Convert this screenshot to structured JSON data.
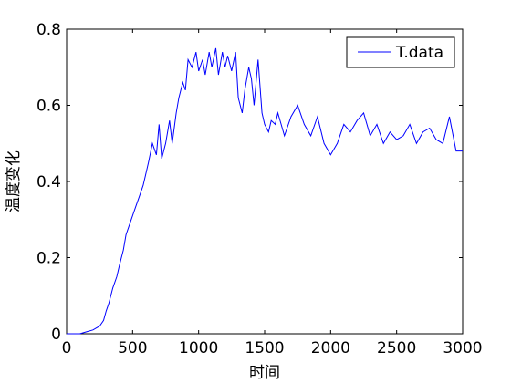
{
  "chart_data": {
    "type": "line",
    "title": "",
    "xlabel": "时间",
    "ylabel": "温度变化",
    "xlim": [
      0,
      3000
    ],
    "ylim": [
      0,
      0.8
    ],
    "xticks": [
      0,
      500,
      1000,
      1500,
      2000,
      2500,
      3000
    ],
    "xtick_labels": [
      "0",
      "500",
      "1000",
      "1500",
      "2000",
      "2500",
      "3000"
    ],
    "yticks": [
      0,
      0.2,
      0.4,
      0.6,
      0.8
    ],
    "ytick_labels": [
      "0",
      "0.2",
      "0.4",
      "0.6",
      "0.8"
    ],
    "grid": false,
    "legend_position": "top-right",
    "series": [
      {
        "name": "T.data",
        "color": "#0000ff",
        "x": [
          0,
          50,
          100,
          150,
          200,
          250,
          280,
          300,
          320,
          350,
          380,
          400,
          430,
          450,
          480,
          500,
          520,
          550,
          580,
          600,
          620,
          650,
          680,
          700,
          720,
          750,
          780,
          800,
          830,
          850,
          880,
          900,
          920,
          950,
          980,
          1000,
          1030,
          1050,
          1080,
          1100,
          1130,
          1150,
          1180,
          1200,
          1220,
          1250,
          1280,
          1300,
          1330,
          1350,
          1380,
          1400,
          1420,
          1450,
          1480,
          1500,
          1530,
          1550,
          1580,
          1600,
          1650,
          1700,
          1750,
          1800,
          1850,
          1900,
          1950,
          2000,
          2050,
          2100,
          2150,
          2200,
          2250,
          2300,
          2350,
          2400,
          2450,
          2500,
          2550,
          2600,
          2650,
          2700,
          2750,
          2800,
          2850,
          2900,
          2950,
          3000
        ],
        "y": [
          0.0,
          0.0,
          0.0,
          0.005,
          0.01,
          0.02,
          0.035,
          0.06,
          0.08,
          0.12,
          0.15,
          0.18,
          0.22,
          0.26,
          0.29,
          0.31,
          0.33,
          0.36,
          0.39,
          0.42,
          0.45,
          0.5,
          0.47,
          0.55,
          0.46,
          0.5,
          0.56,
          0.5,
          0.58,
          0.62,
          0.66,
          0.64,
          0.72,
          0.7,
          0.74,
          0.69,
          0.72,
          0.68,
          0.74,
          0.7,
          0.75,
          0.68,
          0.74,
          0.7,
          0.73,
          0.69,
          0.74,
          0.62,
          0.58,
          0.64,
          0.7,
          0.67,
          0.6,
          0.72,
          0.58,
          0.55,
          0.53,
          0.56,
          0.55,
          0.58,
          0.52,
          0.57,
          0.6,
          0.55,
          0.52,
          0.57,
          0.5,
          0.47,
          0.5,
          0.55,
          0.53,
          0.56,
          0.58,
          0.52,
          0.55,
          0.5,
          0.53,
          0.51,
          0.52,
          0.55,
          0.5,
          0.53,
          0.54,
          0.51,
          0.5,
          0.57,
          0.48,
          0.48
        ]
      }
    ]
  }
}
